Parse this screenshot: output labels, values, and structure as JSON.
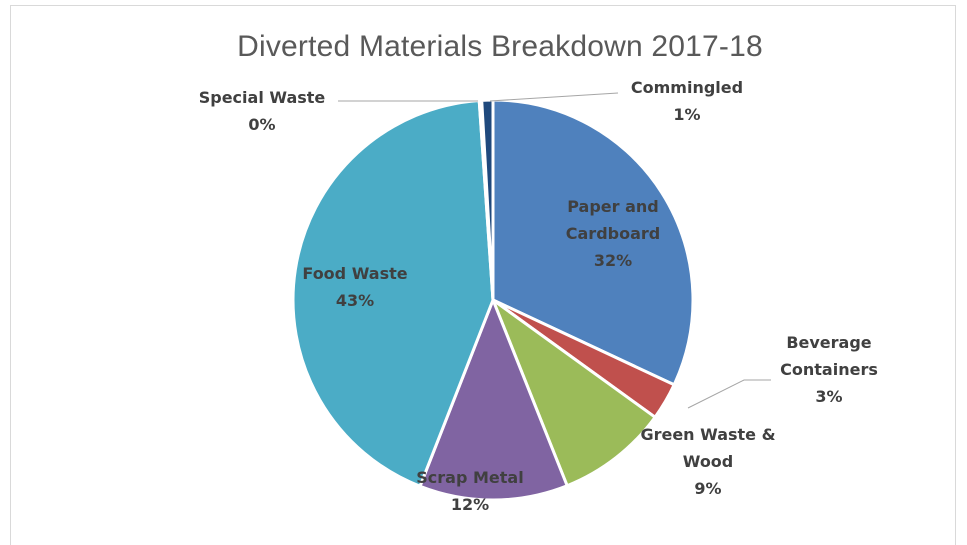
{
  "chart_data": {
    "type": "pie",
    "title": "Diverted Materials Breakdown 2017-18",
    "slices": [
      {
        "name": "Paper and Cardboard",
        "label_lines": [
          "Paper and",
          "Cardboard"
        ],
        "value": 32,
        "pct_label": "32%",
        "color": "#4F81BD"
      },
      {
        "name": "Beverage Containers",
        "label_lines": [
          "Beverage",
          "Containers"
        ],
        "value": 3,
        "pct_label": "3%",
        "color": "#C0504D"
      },
      {
        "name": "Green Waste & Wood",
        "label_lines": [
          "Green Waste &",
          "Wood"
        ],
        "value": 9,
        "pct_label": "9%",
        "color": "#9BBB59"
      },
      {
        "name": "Scrap Metal",
        "label_lines": [
          "Scrap Metal"
        ],
        "value": 12,
        "pct_label": "12%",
        "color": "#8064A2"
      },
      {
        "name": "Food Waste",
        "label_lines": [
          "Food Waste"
        ],
        "value": 43,
        "pct_label": "43%",
        "color": "#4BACC6"
      },
      {
        "name": "Special Waste",
        "label_lines": [
          "Special Waste"
        ],
        "value": 0.2,
        "pct_label": "0%",
        "color": "#F79646"
      },
      {
        "name": "Commingled",
        "label_lines": [
          "Commingled"
        ],
        "value": 0.9,
        "pct_label": "1%",
        "color": "#1F497D"
      }
    ]
  }
}
